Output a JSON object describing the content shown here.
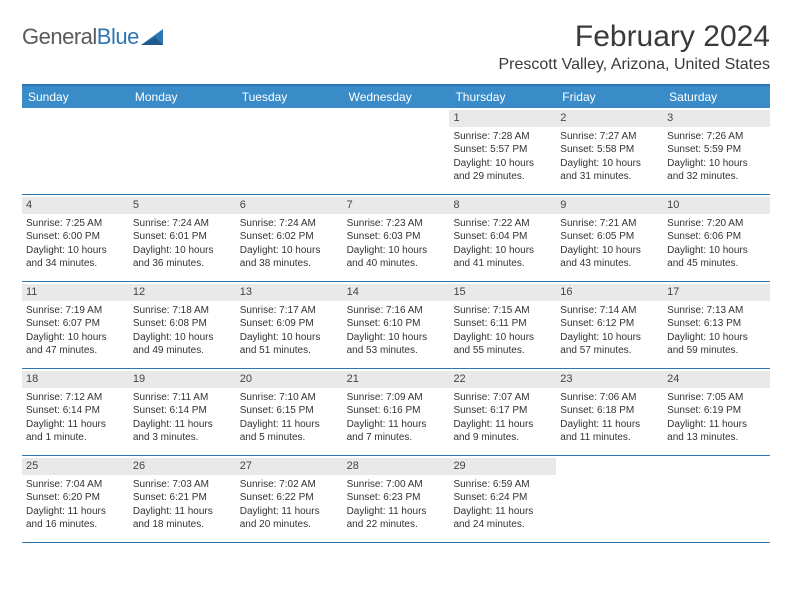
{
  "brand": {
    "word1": "General",
    "word2": "Blue"
  },
  "title": "February 2024",
  "location": "Prescott Valley, Arizona, United States",
  "colors": {
    "header_bg": "#3a8cc9",
    "rule": "#2d76b5",
    "daynum_bg": "#e9e9e9",
    "text": "#333333"
  },
  "day_headers": [
    "Sunday",
    "Monday",
    "Tuesday",
    "Wednesday",
    "Thursday",
    "Friday",
    "Saturday"
  ],
  "weeks": [
    [
      null,
      null,
      null,
      null,
      {
        "n": "1",
        "sr": "Sunrise: 7:28 AM",
        "ss": "Sunset: 5:57 PM",
        "dl": "Daylight: 10 hours and 29 minutes."
      },
      {
        "n": "2",
        "sr": "Sunrise: 7:27 AM",
        "ss": "Sunset: 5:58 PM",
        "dl": "Daylight: 10 hours and 31 minutes."
      },
      {
        "n": "3",
        "sr": "Sunrise: 7:26 AM",
        "ss": "Sunset: 5:59 PM",
        "dl": "Daylight: 10 hours and 32 minutes."
      }
    ],
    [
      {
        "n": "4",
        "sr": "Sunrise: 7:25 AM",
        "ss": "Sunset: 6:00 PM",
        "dl": "Daylight: 10 hours and 34 minutes."
      },
      {
        "n": "5",
        "sr": "Sunrise: 7:24 AM",
        "ss": "Sunset: 6:01 PM",
        "dl": "Daylight: 10 hours and 36 minutes."
      },
      {
        "n": "6",
        "sr": "Sunrise: 7:24 AM",
        "ss": "Sunset: 6:02 PM",
        "dl": "Daylight: 10 hours and 38 minutes."
      },
      {
        "n": "7",
        "sr": "Sunrise: 7:23 AM",
        "ss": "Sunset: 6:03 PM",
        "dl": "Daylight: 10 hours and 40 minutes."
      },
      {
        "n": "8",
        "sr": "Sunrise: 7:22 AM",
        "ss": "Sunset: 6:04 PM",
        "dl": "Daylight: 10 hours and 41 minutes."
      },
      {
        "n": "9",
        "sr": "Sunrise: 7:21 AM",
        "ss": "Sunset: 6:05 PM",
        "dl": "Daylight: 10 hours and 43 minutes."
      },
      {
        "n": "10",
        "sr": "Sunrise: 7:20 AM",
        "ss": "Sunset: 6:06 PM",
        "dl": "Daylight: 10 hours and 45 minutes."
      }
    ],
    [
      {
        "n": "11",
        "sr": "Sunrise: 7:19 AM",
        "ss": "Sunset: 6:07 PM",
        "dl": "Daylight: 10 hours and 47 minutes."
      },
      {
        "n": "12",
        "sr": "Sunrise: 7:18 AM",
        "ss": "Sunset: 6:08 PM",
        "dl": "Daylight: 10 hours and 49 minutes."
      },
      {
        "n": "13",
        "sr": "Sunrise: 7:17 AM",
        "ss": "Sunset: 6:09 PM",
        "dl": "Daylight: 10 hours and 51 minutes."
      },
      {
        "n": "14",
        "sr": "Sunrise: 7:16 AM",
        "ss": "Sunset: 6:10 PM",
        "dl": "Daylight: 10 hours and 53 minutes."
      },
      {
        "n": "15",
        "sr": "Sunrise: 7:15 AM",
        "ss": "Sunset: 6:11 PM",
        "dl": "Daylight: 10 hours and 55 minutes."
      },
      {
        "n": "16",
        "sr": "Sunrise: 7:14 AM",
        "ss": "Sunset: 6:12 PM",
        "dl": "Daylight: 10 hours and 57 minutes."
      },
      {
        "n": "17",
        "sr": "Sunrise: 7:13 AM",
        "ss": "Sunset: 6:13 PM",
        "dl": "Daylight: 10 hours and 59 minutes."
      }
    ],
    [
      {
        "n": "18",
        "sr": "Sunrise: 7:12 AM",
        "ss": "Sunset: 6:14 PM",
        "dl": "Daylight: 11 hours and 1 minute."
      },
      {
        "n": "19",
        "sr": "Sunrise: 7:11 AM",
        "ss": "Sunset: 6:14 PM",
        "dl": "Daylight: 11 hours and 3 minutes."
      },
      {
        "n": "20",
        "sr": "Sunrise: 7:10 AM",
        "ss": "Sunset: 6:15 PM",
        "dl": "Daylight: 11 hours and 5 minutes."
      },
      {
        "n": "21",
        "sr": "Sunrise: 7:09 AM",
        "ss": "Sunset: 6:16 PM",
        "dl": "Daylight: 11 hours and 7 minutes."
      },
      {
        "n": "22",
        "sr": "Sunrise: 7:07 AM",
        "ss": "Sunset: 6:17 PM",
        "dl": "Daylight: 11 hours and 9 minutes."
      },
      {
        "n": "23",
        "sr": "Sunrise: 7:06 AM",
        "ss": "Sunset: 6:18 PM",
        "dl": "Daylight: 11 hours and 11 minutes."
      },
      {
        "n": "24",
        "sr": "Sunrise: 7:05 AM",
        "ss": "Sunset: 6:19 PM",
        "dl": "Daylight: 11 hours and 13 minutes."
      }
    ],
    [
      {
        "n": "25",
        "sr": "Sunrise: 7:04 AM",
        "ss": "Sunset: 6:20 PM",
        "dl": "Daylight: 11 hours and 16 minutes."
      },
      {
        "n": "26",
        "sr": "Sunrise: 7:03 AM",
        "ss": "Sunset: 6:21 PM",
        "dl": "Daylight: 11 hours and 18 minutes."
      },
      {
        "n": "27",
        "sr": "Sunrise: 7:02 AM",
        "ss": "Sunset: 6:22 PM",
        "dl": "Daylight: 11 hours and 20 minutes."
      },
      {
        "n": "28",
        "sr": "Sunrise: 7:00 AM",
        "ss": "Sunset: 6:23 PM",
        "dl": "Daylight: 11 hours and 22 minutes."
      },
      {
        "n": "29",
        "sr": "Sunrise: 6:59 AM",
        "ss": "Sunset: 6:24 PM",
        "dl": "Daylight: 11 hours and 24 minutes."
      },
      null,
      null
    ]
  ]
}
